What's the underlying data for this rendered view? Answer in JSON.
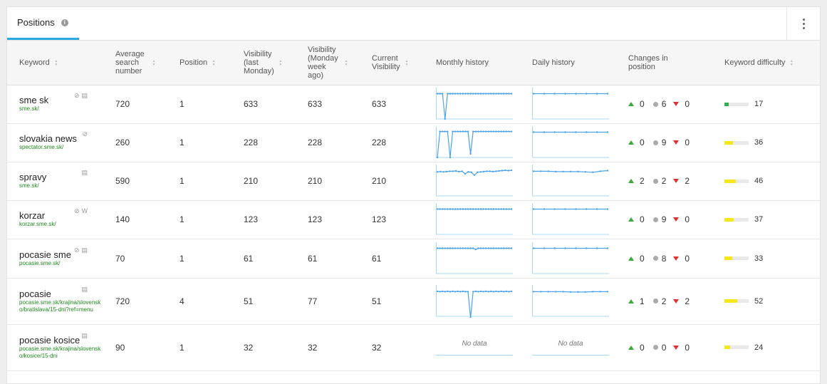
{
  "tab": {
    "label": "Positions",
    "info_icon": "info-icon"
  },
  "menu_icon": "more-vertical-icon",
  "columns": [
    "Keyword",
    "Average search number",
    "Position",
    "Visibility (last Monday)",
    "Visibility (Monday week ago)",
    "Current Visibility",
    "Monthly history",
    "Daily history",
    "Changes in position",
    "Keyword difficulty"
  ],
  "colors": {
    "accent": "#29a8e0",
    "spark": "#4aa3e8",
    "url": "#1e8a1e",
    "up": "#3aaa3a",
    "down": "#e03030",
    "difficulty_green": "#2db24a",
    "difficulty_yellow": "#f7e61a"
  },
  "no_data_label": "No data",
  "rows": [
    {
      "keyword": "sme sk",
      "url": "sme.sk/",
      "icons": "link-icon document-icon",
      "avg": "720",
      "position": "1",
      "vis_last": "633",
      "vis_week": "633",
      "vis_current": "633",
      "monthly": [
        10,
        10,
        10,
        10,
        10,
        10,
        10,
        10,
        10,
        10,
        10,
        10,
        10,
        10,
        10,
        10,
        10,
        10,
        10,
        10,
        10,
        10,
        10,
        10,
        10,
        10,
        10,
        10,
        10,
        10
      ],
      "monthly_dips": [
        [
          3,
          40
        ]
      ],
      "daily": [
        10,
        10,
        10,
        10,
        10,
        10,
        10,
        10
      ],
      "up": "0",
      "same": "6",
      "down": "0",
      "difficulty": 17
    },
    {
      "keyword": "slovakia news",
      "url": "spectator.sme.sk/",
      "icons": "link-icon",
      "avg": "260",
      "position": "1",
      "vis_last": "228",
      "vis_week": "228",
      "vis_current": "228",
      "monthly": [
        8,
        8,
        8,
        8,
        8,
        8,
        8,
        8,
        8,
        8,
        8,
        8,
        8,
        8,
        8,
        8,
        8,
        8,
        8,
        8,
        8,
        8,
        8,
        8,
        8,
        8,
        8,
        8,
        8,
        8
      ],
      "monthly_dips": [
        [
          0,
          40
        ],
        [
          5,
          40
        ],
        [
          13,
          35
        ]
      ],
      "daily": [
        10,
        10,
        10,
        10,
        10,
        10,
        10,
        10
      ],
      "up": "0",
      "same": "9",
      "down": "0",
      "difficulty": 36
    },
    {
      "keyword": "spravy",
      "url": "sme.sk/",
      "icons": "document-icon",
      "avg": "590",
      "position": "1",
      "vis_last": "210",
      "vis_week": "210",
      "vis_current": "210",
      "monthly": [
        14,
        13,
        14,
        13,
        12,
        12,
        11,
        13,
        12,
        20,
        14,
        15,
        24,
        15,
        14,
        13,
        12,
        12,
        13,
        12,
        11,
        10,
        9,
        10,
        9
      ],
      "monthly_dips": [],
      "daily": [
        12,
        12,
        12,
        13,
        13,
        13,
        13,
        14,
        15,
        12,
        10
      ],
      "up": "2",
      "same": "2",
      "down": "2",
      "difficulty": 46
    },
    {
      "keyword": "korzar",
      "url": "korzar.sme.sk/",
      "icons": "link-icon wikipedia-icon",
      "avg": "140",
      "position": "1",
      "vis_last": "123",
      "vis_week": "123",
      "vis_current": "123",
      "monthly": [
        10,
        10,
        10,
        10,
        10,
        10,
        10,
        10,
        10,
        10,
        10,
        10,
        10,
        10,
        10,
        10,
        10,
        10,
        10,
        10,
        10,
        10,
        10,
        10,
        10,
        10,
        10,
        10,
        10,
        10
      ],
      "monthly_dips": [],
      "daily": [
        10,
        10,
        10,
        10,
        10,
        10,
        10,
        10
      ],
      "up": "0",
      "same": "9",
      "down": "0",
      "difficulty": 37
    },
    {
      "keyword": "pocasie sme",
      "url": "pocasie.sme.sk/",
      "icons": "link-icon document-icon",
      "avg": "70",
      "position": "1",
      "vis_last": "61",
      "vis_week": "61",
      "vis_current": "61",
      "monthly": [
        10,
        10,
        10,
        10,
        10,
        10,
        10,
        10,
        10,
        10,
        10,
        10,
        10,
        10,
        10,
        10,
        10,
        10,
        10,
        10,
        10,
        10,
        10,
        10,
        10,
        10,
        10,
        10,
        10,
        10
      ],
      "monthly_dips": [
        [
          15,
          6
        ]
      ],
      "daily": [
        10,
        10,
        10,
        10,
        10,
        10,
        10,
        10
      ],
      "up": "0",
      "same": "8",
      "down": "0",
      "difficulty": 33
    },
    {
      "keyword": "pocasie",
      "url": "pocasie.sme.sk/krajina/slovensko/bratislava/15-dni?ref=menu",
      "icons": "document-icon",
      "avg": "720",
      "position": "4",
      "vis_last": "51",
      "vis_week": "77",
      "vis_current": "51",
      "monthly": [
        11,
        12,
        11,
        12,
        11,
        12,
        11,
        12,
        11,
        12,
        11,
        12,
        12,
        11,
        12,
        11,
        12,
        11,
        12,
        11,
        12,
        11,
        12,
        11,
        12,
        11,
        12,
        11,
        12,
        11
      ],
      "monthly_dips": [
        [
          13,
          42
        ]
      ],
      "daily": [
        12,
        12,
        12,
        12,
        12,
        13,
        13,
        13,
        12,
        12,
        12
      ],
      "up": "1",
      "same": "2",
      "down": "2",
      "difficulty": 52
    },
    {
      "keyword": "pocasie kosice",
      "url": "pocasie.sme.sk/krajina/slovensko/kosice/15-dni",
      "icons": "document-icon",
      "avg": "90",
      "position": "1",
      "vis_last": "32",
      "vis_week": "32",
      "vis_current": "32",
      "monthly": [],
      "monthly_dips": [],
      "daily": [],
      "up": "0",
      "same": "0",
      "down": "0",
      "difficulty": 24
    }
  ]
}
